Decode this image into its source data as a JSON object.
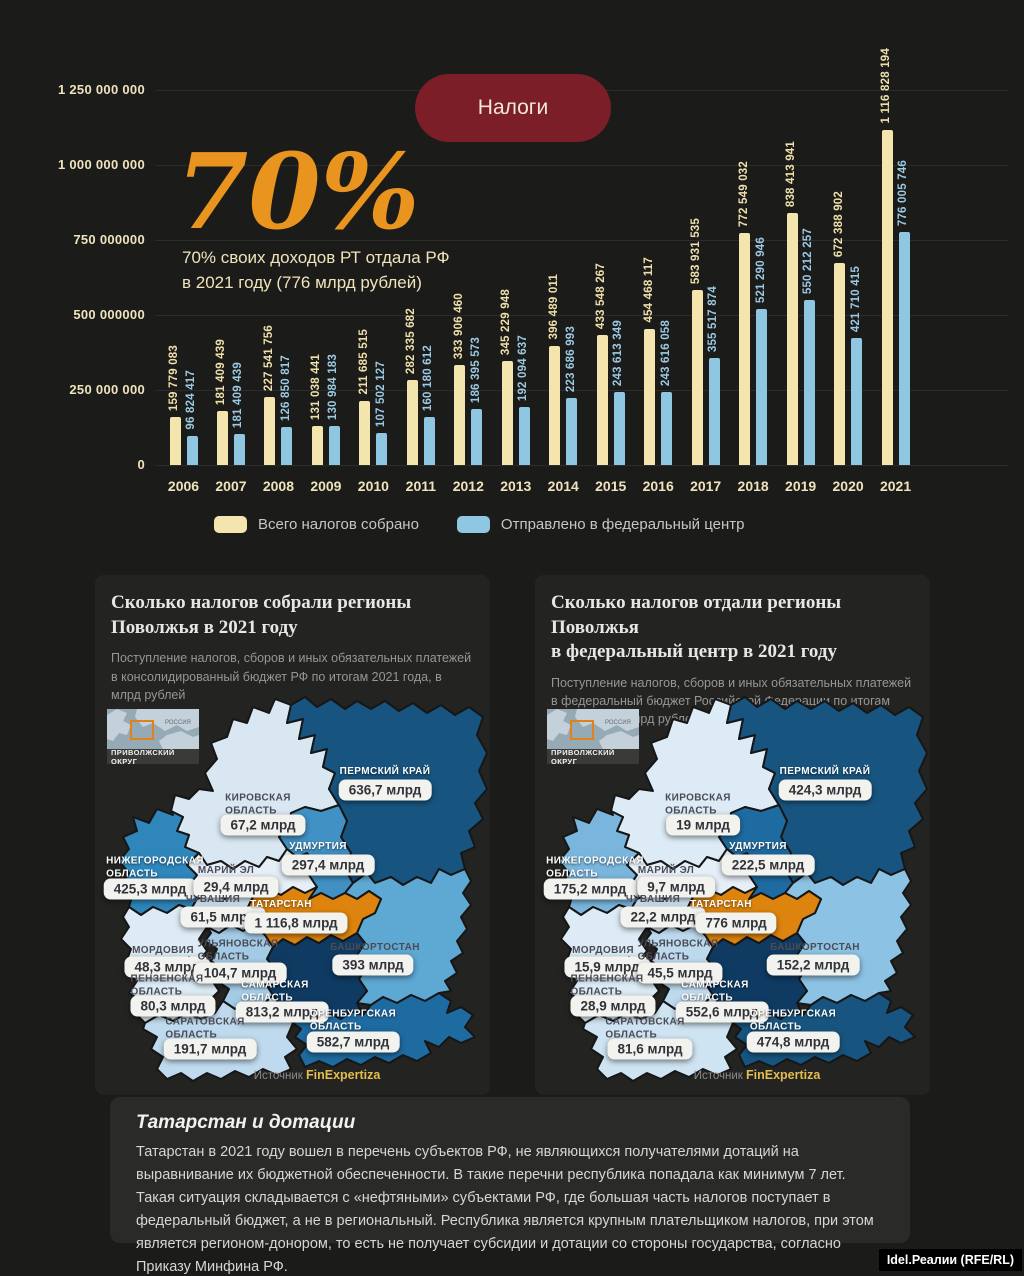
{
  "header": {
    "badge": "Налоги",
    "badge_bg": "#7c1e27",
    "stat_percent": "70%",
    "stat_caption": "70% своих доходов РТ отдала РФ\nв 2021 году (776 млрд рублей)",
    "accent_orange": "#e9941f"
  },
  "chart_data": {
    "type": "bar",
    "title": "Налоги",
    "grid": true,
    "legend_position": "bottom",
    "ylim": [
      0,
      1250000000
    ],
    "y_ticks": [
      "1 250 000 000",
      "1 000 000 000",
      "750 000000",
      "500 000000",
      "250 000 000",
      "0"
    ],
    "categories": [
      "2006",
      "2007",
      "2008",
      "2009",
      "2010",
      "2011",
      "2012",
      "2013",
      "2014",
      "2015",
      "2016",
      "2017",
      "2018",
      "2019",
      "2020",
      "2021"
    ],
    "series": [
      {
        "name": "Всего налогов собрано",
        "color": "#f4e4ae",
        "values": [
          159779083,
          181409439,
          227541756,
          131038441,
          211685515,
          282335682,
          333906460,
          345229948,
          396489011,
          433548267,
          454468117,
          583931535,
          772549032,
          838413941,
          672388902,
          1116828194
        ],
        "labels": [
          "159 779 083",
          "181 409 439",
          "227 541 756",
          "131 038 441",
          "211 685 515",
          "282 335 682",
          "333 906 460",
          "345 229 948",
          "396 489 011",
          "433 548 267",
          "454 468 117",
          "583 931 535",
          "772 549 032",
          "838 413 941",
          "672 388 902",
          "1 116 828 194"
        ]
      },
      {
        "name": "Отправлено в федеральный центр",
        "color": "#8fc6e1",
        "values": [
          96824417,
          181409439,
          126850817,
          130984183,
          107502127,
          160180612,
          186395573,
          192094637,
          223686993,
          243613349,
          243616058,
          355517874,
          521290946,
          550212257,
          421710415,
          776005746
        ],
        "labels": [
          "96 824 417",
          "181 409 439",
          "126 850 817",
          "130 984 183",
          "107 502 127",
          "160 180 612",
          "186 395 573",
          "192 094 637",
          "223 686 993",
          "243 613 349",
          "243 616 058",
          "355 517 874",
          "521 290 946",
          "550 212 257",
          "421 710 415",
          "776 005 746"
        ]
      }
    ]
  },
  "panels": {
    "left": {
      "title": "Сколько налогов собрали регионы\nПоволжья в 2021 году",
      "subtitle": "Поступление налогов, сборов и иных обязательных платежей в консолидированный бюджет РФ по итогам 2021 года, в млрд рублей",
      "source_label": "Источник",
      "source_name": "FinExpertiza",
      "inset": {
        "country": "РОССИЯ",
        "district": "ПРИВОЛЖСКИЙ ОКРУГ"
      },
      "regions": {
        "perm": {
          "name": "ПЕРМСКИЙ КРАЙ",
          "value": "636,7 млрд",
          "fill": "#175580"
        },
        "kirov": {
          "name": "КИРОВСКАЯ\nОБЛАСТЬ",
          "value": "67,2 млрд",
          "fill": "#d9e7f3"
        },
        "udmurtia": {
          "name": "УДМУРТИЯ",
          "value": "297,4 млрд",
          "fill": "#4191c4"
        },
        "nizhny": {
          "name": "НИЖЕГОРОДСКАЯ\nОБЛАСТЬ",
          "value": "425,3 млрд",
          "fill": "#2e86bb"
        },
        "mariyel": {
          "name": "МАРИЙ ЭЛ",
          "value": "29,4 млрд",
          "fill": "#e6eff7"
        },
        "chuvashia": {
          "name": "ЧУВАШИЯ",
          "value": "61,5 млрд",
          "fill": "#cfe2f1"
        },
        "tatarstan": {
          "name": "ТАТАРСТАН",
          "value": "1 116,8 млрд",
          "fill": "#dd840e"
        },
        "mordovia": {
          "name": "МОРДОВИЯ",
          "value": "48,3 млрд",
          "fill": "#dcebf5"
        },
        "ulyanovsk": {
          "name": "УЛЬЯНОВСКАЯ\nОБЛАСТЬ",
          "value": "104,7 млрд",
          "fill": "#a4cbe6"
        },
        "bashkortostan": {
          "name": "БАШКОРТОСТАН",
          "value": "393 млрд",
          "fill": "#5ea8d4"
        },
        "penza": {
          "name": "ПЕНЗЕНСКАЯ\nОБЛАСТЬ",
          "value": "80,3 млрд",
          "fill": "#dcebf5"
        },
        "samara": {
          "name": "САМАРСКАЯ\nОБЛАСТЬ",
          "value": "813,2 млрд",
          "fill": "#0f3a62"
        },
        "saratov": {
          "name": "САРАТОВСКАЯ\nОБЛАСТЬ",
          "value": "191,7 млрд",
          "fill": "#bfdaee"
        },
        "orenburg": {
          "name": "ОРЕНБУРГСКАЯ\nОБЛАСТЬ",
          "value": "582,7 млрд",
          "fill": "#1e6ba1"
        }
      }
    },
    "right": {
      "title": "Сколько налогов отдали регионы Поволжья\nв федеральный центр в 2021 году",
      "subtitle": "Поступление налогов, сборов и иных обязательных платежей в федеральный бюджет Российской Федерации по итогам 2021 года, в млрд рублей",
      "source_label": "Источник",
      "source_name": "FinExpertiza",
      "inset": {
        "country": "РОССИЯ",
        "district": "ПРИВОЛЖСКИЙ ОКРУГ"
      },
      "regions": {
        "perm": {
          "name": "ПЕРМСКИЙ КРАЙ",
          "value": "424,3 млрд",
          "fill": "#175580"
        },
        "kirov": {
          "name": "КИРОВСКАЯ\nОБЛАСТЬ",
          "value": "19 млрд",
          "fill": "#dcebf5"
        },
        "udmurtia": {
          "name": "УДМУРТИЯ",
          "value": "222,5 млрд",
          "fill": "#1e6ba1"
        },
        "nizhny": {
          "name": "НИЖЕГОРОДСКАЯ\nОБЛАСТЬ",
          "value": "175,2 млрд",
          "fill": "#79b5dc"
        },
        "mariyel": {
          "name": "МАРИЙ ЭЛ",
          "value": "9,7 млрд",
          "fill": "#e6eff7"
        },
        "chuvashia": {
          "name": "ЧУВАШИЯ",
          "value": "22,2 млрд",
          "fill": "#cfe2f1"
        },
        "tatarstan": {
          "name": "ТАТАРСТАН",
          "value": "776 млрд",
          "fill": "#dd840e"
        },
        "mordovia": {
          "name": "МОРДОВИЯ",
          "value": "15,9 млрд",
          "fill": "#dcebf5"
        },
        "ulyanovsk": {
          "name": "УЛЬЯНОВСКАЯ\nОБЛАСТЬ",
          "value": "45,5 млрд",
          "fill": "#bdd9ee"
        },
        "bashkortostan": {
          "name": "БАШКОРТОСТАН",
          "value": "152,2 млрд",
          "fill": "#8cc2e3"
        },
        "penza": {
          "name": "ПЕНЗЕНСКАЯ\nОБЛАСТЬ",
          "value": "28,9 млрд",
          "fill": "#dcebf5"
        },
        "samara": {
          "name": "САМАРСКАЯ\nОБЛАСТЬ",
          "value": "552,6 млрд",
          "fill": "#0f3a62"
        },
        "saratov": {
          "name": "САРАТОВСКАЯ\nОБЛАСТЬ",
          "value": "81,6 млрд",
          "fill": "#cfe4f2"
        },
        "orenburg": {
          "name": "ОРЕНБУРГСКАЯ\nОБЛАСТЬ",
          "value": "474,8 млрд",
          "fill": "#175580"
        }
      }
    }
  },
  "footer": {
    "title": "Татарстан и дотации",
    "body": "Татарстан в 2021 году вошел в перечень субъектов РФ, не являющихся получателями дотаций на выравнивание их бюджетной обеспеченности. В такие перечни республика попадала как минимум 7 лет. Такая ситуация складывается с «нефтяными» субъектами РФ, где большая часть налогов поступает в федеральный бюджет, а не в региональный. Республика является крупным плательщиком налогов, при этом является регионом-донором, то есть не получает субсидии и дотации со стороны государства, согласно Приказу Минфина РФ.",
    "watermark": "Idel.Реалии (RFE/RL)"
  }
}
